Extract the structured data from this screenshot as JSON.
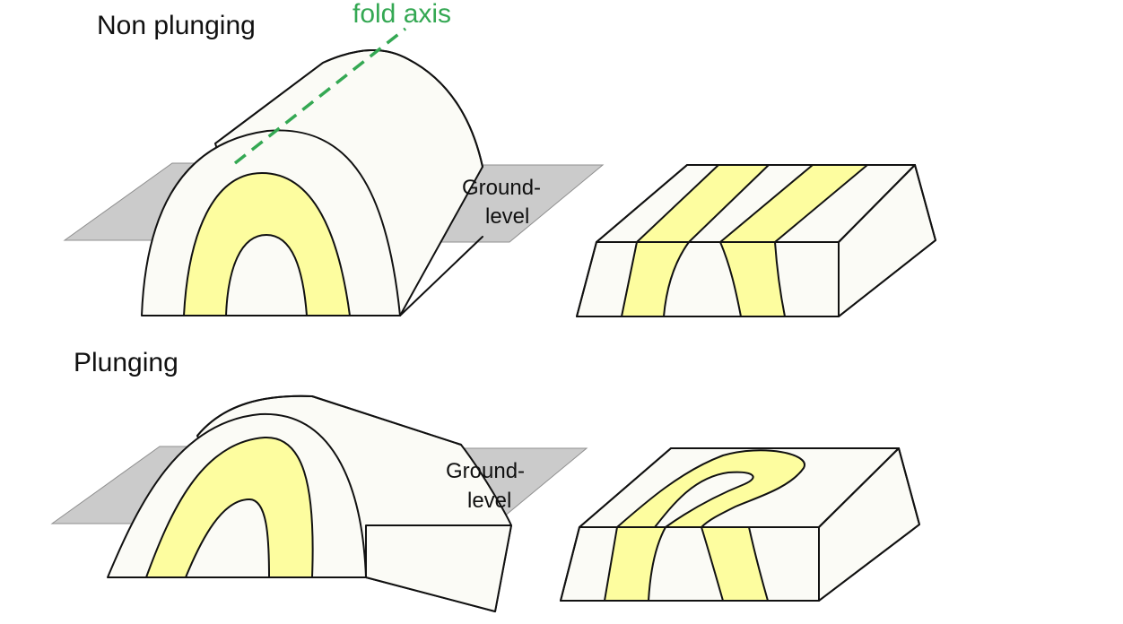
{
  "labels": {
    "non_plunging": "Non plunging",
    "plunging": "Plunging",
    "fold_axis": "fold axis",
    "ground_level_line1": "Ground-",
    "ground_level_line2": "level"
  },
  "colors": {
    "layer_fill": "#fdfd9f",
    "body_fill": "#fbfbf6",
    "ground_fill": "#cbcbcb",
    "ground_edge": "#8f8f8f",
    "outline": "#111111",
    "fold_axis": "#34a853"
  }
}
